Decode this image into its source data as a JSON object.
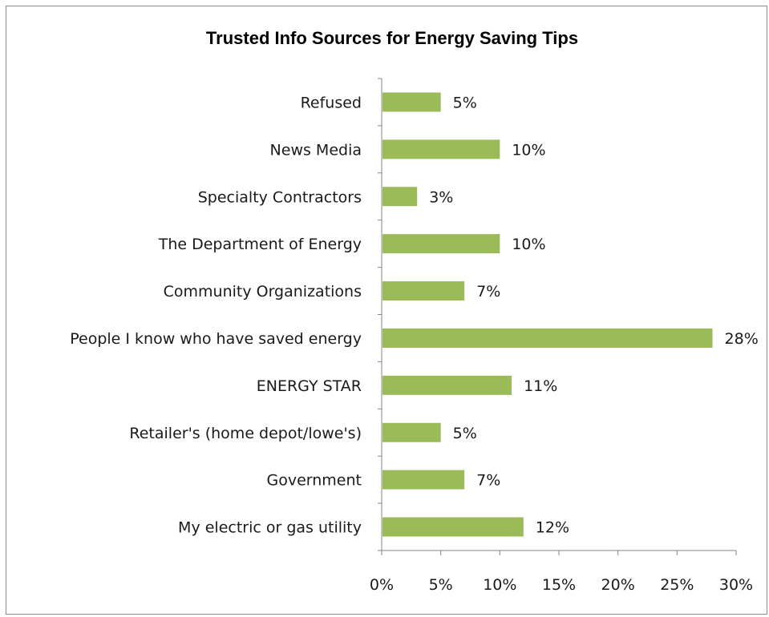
{
  "colors": {
    "bar": "#9bbb59",
    "axis": "#868686",
    "text": "#1a1a1a"
  },
  "chart_data": {
    "type": "bar",
    "orientation": "horizontal",
    "title": "Trusted Info Sources for Energy Saving Tips",
    "categories": [
      "Refused",
      "News Media",
      "Specialty Contractors",
      "The Department of Energy",
      "Community Organizations",
      "People I know who have saved energy",
      "ENERGY STAR",
      "Retailer's (home depot/lowe's)",
      "Government",
      "My electric or gas utility"
    ],
    "values": [
      5,
      10,
      3,
      10,
      7,
      28,
      11,
      5,
      7,
      12
    ],
    "value_labels": [
      "5%",
      "10%",
      "3%",
      "10%",
      "7%",
      "28%",
      "11%",
      "5%",
      "7%",
      "12%"
    ],
    "xlim": [
      0,
      30
    ],
    "x_ticks": [
      0,
      5,
      10,
      15,
      20,
      25,
      30
    ],
    "x_tick_labels": [
      "0%",
      "5%",
      "10%",
      "15%",
      "20%",
      "25%",
      "30%"
    ],
    "grid": false,
    "legend": "none"
  }
}
